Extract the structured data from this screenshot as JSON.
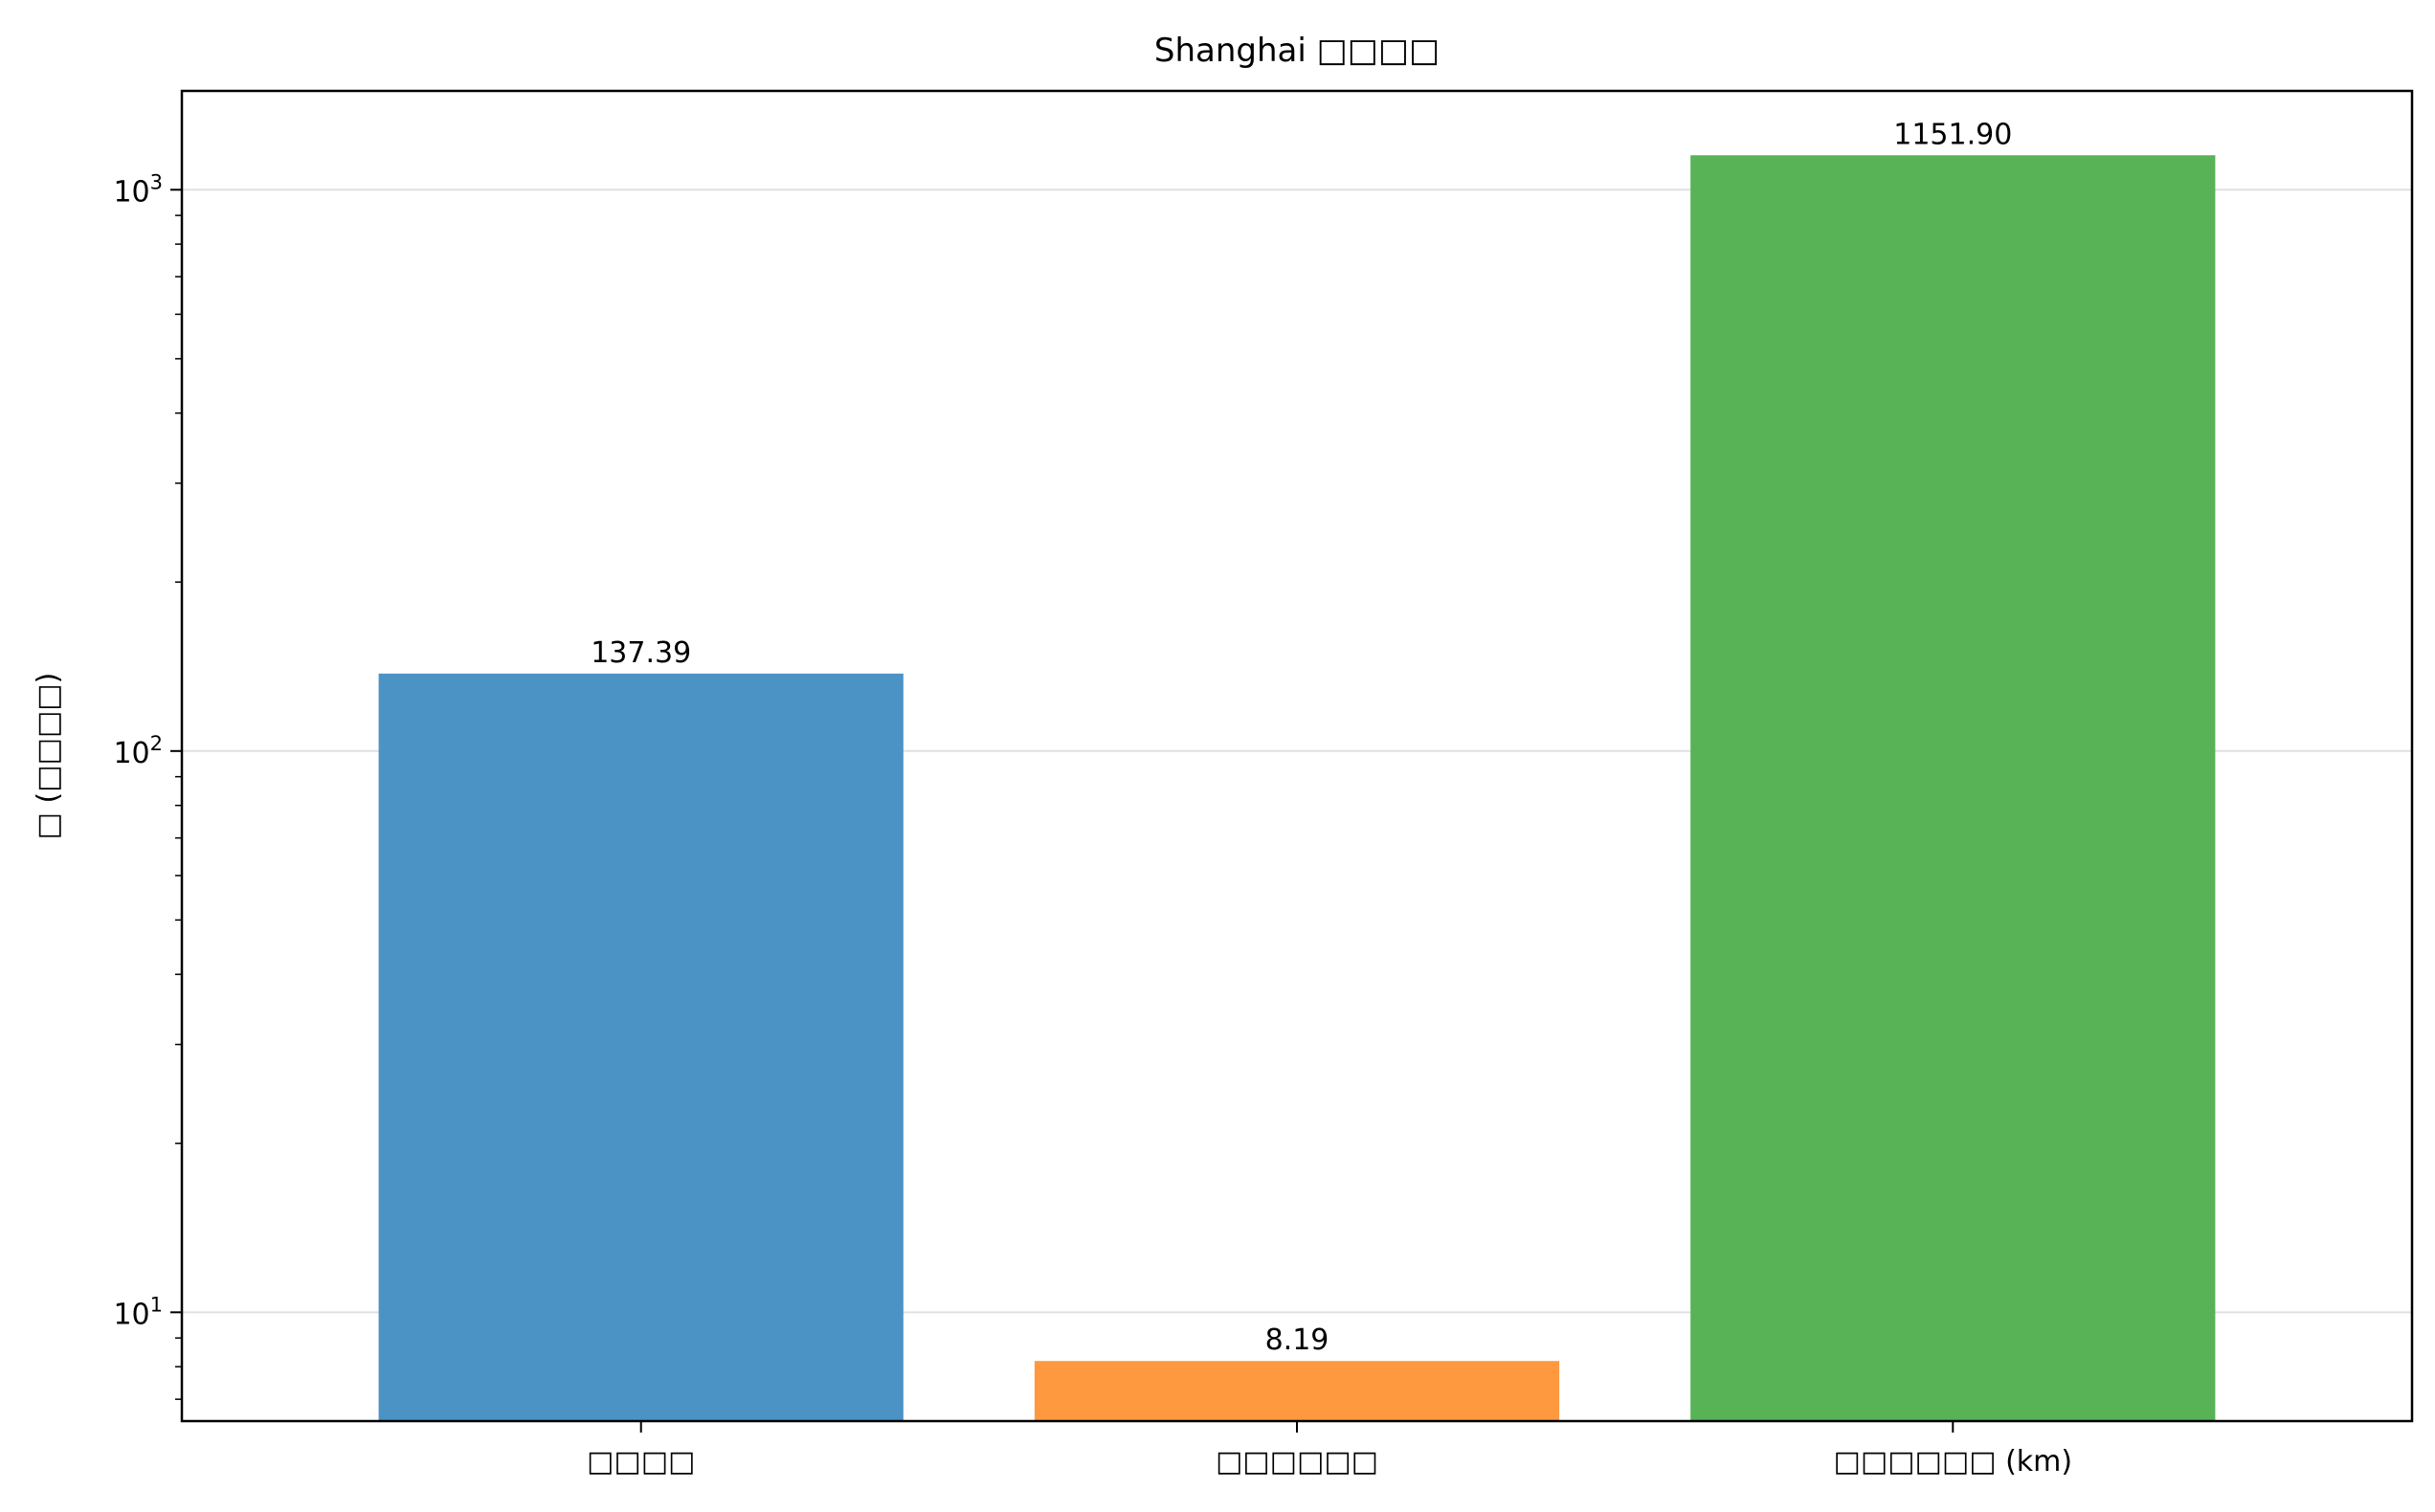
{
  "chart_data": {
    "type": "bar",
    "title": "Shanghai □□□□",
    "xlabel": "",
    "ylabel": "□ (□□□□)",
    "yscale": "log",
    "ylim": [
      6.4,
      1500
    ],
    "grid": {
      "y": true,
      "x": false
    },
    "categories": [
      "□□□□",
      "□□□□□□",
      "□□□□□□ (km)"
    ],
    "values": [
      137.39,
      8.19,
      1151.9
    ],
    "value_labels": [
      "137.39",
      "8.19",
      "1151.90"
    ],
    "colors": [
      "#4c93c5",
      "#ff993f",
      "#57b356"
    ],
    "y_ticks": [
      {
        "value": 10,
        "base": "10",
        "exp": "1"
      },
      {
        "value": 100,
        "base": "10",
        "exp": "2"
      },
      {
        "value": 1000,
        "base": "10",
        "exp": "3"
      }
    ]
  }
}
